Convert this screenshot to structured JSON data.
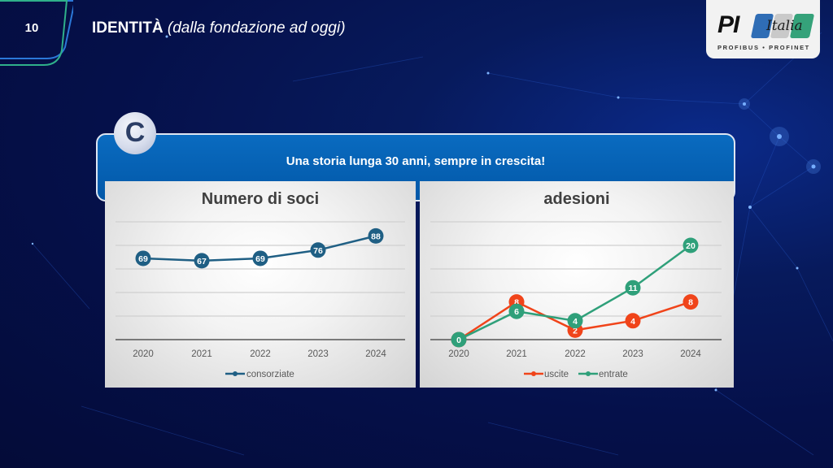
{
  "header": {
    "page_number": "10",
    "title_main": "IDENTITÀ",
    "title_sub": "(dalla fondazione ad oggi)"
  },
  "logo": {
    "mark": "PI",
    "word": "Italia",
    "tagline": "PROFIBUS • PROFINET"
  },
  "section": {
    "badge_letter": "C",
    "banner_text": "Una storia lunga 30 anni, sempre in crescita!"
  },
  "colors": {
    "background": "#05104a",
    "banner": "#0a6bc0",
    "consorziate": "#1f5f84",
    "uscite": "#f0441a",
    "entrate": "#2fa07a"
  },
  "chart_data": [
    {
      "type": "line",
      "title": "Numero di soci",
      "categories": [
        "2020",
        "2021",
        "2022",
        "2023",
        "2024"
      ],
      "series": [
        {
          "name": "consorziate",
          "color": "#1f5f84",
          "values": [
            69,
            67,
            69,
            76,
            88
          ]
        }
      ],
      "xlabel": "",
      "ylabel": "",
      "ylim": [
        0,
        100
      ],
      "grid": true,
      "legend_position": "bottom",
      "data_labels": true
    },
    {
      "type": "line",
      "title": "adesioni",
      "categories": [
        "2020",
        "2021",
        "2022",
        "2023",
        "2024"
      ],
      "series": [
        {
          "name": "uscite",
          "color": "#f0441a",
          "values": [
            0,
            8,
            2,
            4,
            8
          ]
        },
        {
          "name": "entrate",
          "color": "#2fa07a",
          "values": [
            0,
            6,
            4,
            11,
            20
          ]
        }
      ],
      "xlabel": "",
      "ylabel": "",
      "ylim": [
        0,
        25
      ],
      "grid": true,
      "legend_position": "bottom",
      "data_labels": true
    }
  ]
}
